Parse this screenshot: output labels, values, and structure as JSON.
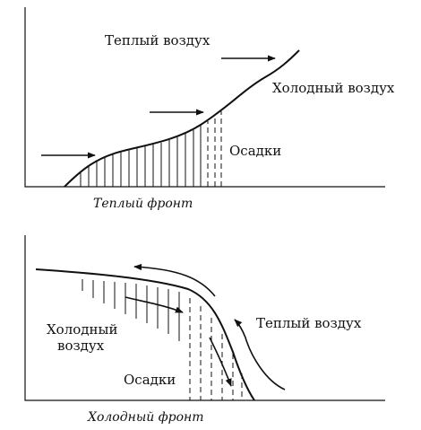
{
  "warm_front": {
    "caption": "Теплый фронт",
    "warm_air_label": "Теплый воздух",
    "cold_air_label": "Холодный воздух",
    "precip_label": "Осадки"
  },
  "cold_front": {
    "caption": "Холодный фронт",
    "warm_air_label": "Теплый воздух",
    "cold_air_label_line1": "Холодный",
    "cold_air_label_line2": "воздух",
    "precip_label": "Осадки"
  }
}
